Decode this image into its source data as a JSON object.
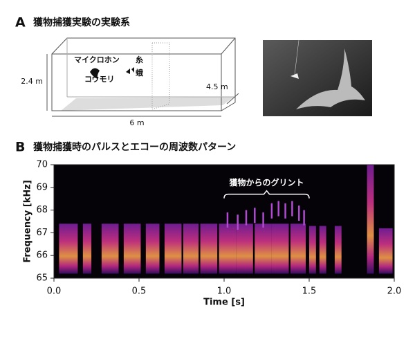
{
  "panel_a": {
    "label": "A",
    "title": "獲物捕獲実験の実験系",
    "microphone": "マイクロホン",
    "thread": "糸",
    "bat": "コウモリ",
    "moth": "蛾",
    "height": "2.4 m",
    "depth": "4.5 m",
    "width": "6 m"
  },
  "panel_b": {
    "label": "B",
    "title": "獲物捕獲時のパルスとエコーの周波数パターン"
  },
  "chart_data": {
    "type": "spectrogram",
    "x_label": "Time [s]",
    "y_label": "Frequency [kHz]",
    "xlim": [
      0,
      2
    ],
    "xticks": [
      {
        "value": 0,
        "label": "0.0"
      },
      0.5,
      {
        "value": 1,
        "label": "1.0"
      },
      1.5,
      {
        "value": 2,
        "label": "2.0"
      }
    ],
    "ylim": [
      65,
      70
    ],
    "yticks": [
      65,
      66,
      67,
      68,
      69,
      70
    ],
    "pulse_start": [
      0.03,
      0.17,
      0.28,
      0.41,
      0.54,
      0.65,
      0.76,
      0.86,
      0.97,
      1.07,
      1.18,
      1.28,
      1.39,
      1.5,
      1.56,
      1.65,
      1.84,
      1.91
    ],
    "pulse_end": [
      0.14,
      0.22,
      0.38,
      0.51,
      0.62,
      0.75,
      0.85,
      0.96,
      1.07,
      1.17,
      1.28,
      1.38,
      1.48,
      1.54,
      1.6,
      1.69,
      1.88,
      1.99
    ],
    "pulse_high": [
      67.4,
      67.4,
      67.4,
      67.4,
      67.4,
      67.4,
      67.4,
      67.4,
      67.4,
      67.4,
      67.4,
      67.4,
      67.4,
      67.3,
      67.3,
      67.3,
      70,
      67.2
    ],
    "pulse_low": 65.2,
    "glint_times": [
      1.02,
      1.08,
      1.13,
      1.18,
      1.23,
      1.28,
      1.32,
      1.36,
      1.4,
      1.44,
      1.47
    ],
    "glint_peaks": [
      67.9,
      67.8,
      68,
      68.1,
      67.9,
      68.3,
      68.4,
      68.3,
      68.4,
      68.2,
      68
    ],
    "annotation": {
      "text": "獲物からのグリント",
      "range": [
        1,
        1.5
      ],
      "y": 68.7
    }
  }
}
